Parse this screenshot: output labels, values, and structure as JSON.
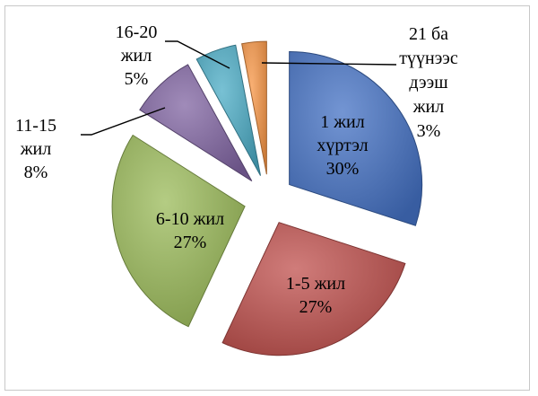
{
  "chart_data": {
    "type": "pie",
    "slices": [
      {
        "lines": [
          "1 жил",
          "хүртэл"
        ],
        "value": 30,
        "percent_label": "30%",
        "color": "#4472C4",
        "exploded": true
      },
      {
        "lines": [
          "1-5 жил"
        ],
        "value": 27,
        "percent_label": "27%",
        "color": "#C0504D",
        "exploded": true
      },
      {
        "lines": [
          "6-10 жил"
        ],
        "value": 27,
        "percent_label": "27%",
        "color": "#9BBB59",
        "exploded": true
      },
      {
        "lines": [
          "11-15",
          "жил"
        ],
        "value": 8,
        "percent_label": "8%",
        "color": "#8064A2",
        "exploded": true
      },
      {
        "lines": [
          "16-20",
          "жил"
        ],
        "value": 5,
        "percent_label": "5%",
        "color": "#4BACC6",
        "exploded": true
      },
      {
        "lines": [
          "21 ба",
          "түүнээс",
          "дээш",
          "жил"
        ],
        "value": 3,
        "percent_label": "3%",
        "color": "#F79646",
        "exploded": true
      }
    ],
    "title": "",
    "legend": "none",
    "label_position": "mixed"
  }
}
